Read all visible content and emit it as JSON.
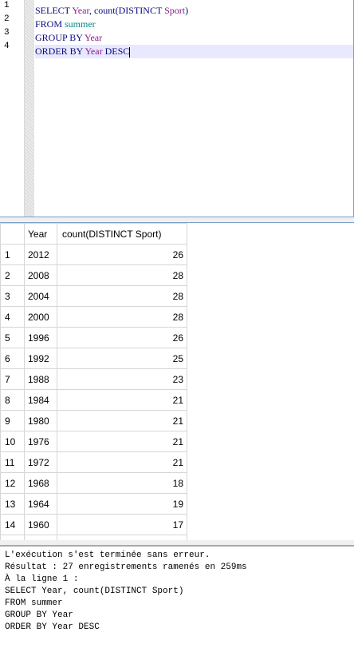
{
  "editor": {
    "line_numbers": [
      "1",
      "2",
      "3",
      "4"
    ],
    "lines": [
      {
        "tokens": [
          {
            "t": "SELECT ",
            "c": "kw"
          },
          {
            "t": "Year",
            "c": "id"
          },
          {
            "t": ", count(DISTINCT ",
            "c": "kw"
          },
          {
            "t": "Sport",
            "c": "id"
          },
          {
            "t": ")",
            "c": "kw"
          }
        ]
      },
      {
        "tokens": [
          {
            "t": "FROM ",
            "c": "kw"
          },
          {
            "t": "summer",
            "c": "tbl"
          }
        ]
      },
      {
        "tokens": [
          {
            "t": "GROUP BY ",
            "c": "kw"
          },
          {
            "t": "Year",
            "c": "id"
          }
        ]
      },
      {
        "tokens": [
          {
            "t": "ORDER BY ",
            "c": "kw"
          },
          {
            "t": "Year",
            "c": "id"
          },
          {
            "t": " DESC",
            "c": "kw"
          }
        ]
      }
    ]
  },
  "grid": {
    "columns": [
      "Year",
      "count(DISTINCT Sport)"
    ],
    "rows": [
      {
        "n": "1",
        "year": "2012",
        "count": "26"
      },
      {
        "n": "2",
        "year": "2008",
        "count": "28"
      },
      {
        "n": "3",
        "year": "2004",
        "count": "28"
      },
      {
        "n": "4",
        "year": "2000",
        "count": "28"
      },
      {
        "n": "5",
        "year": "1996",
        "count": "26"
      },
      {
        "n": "6",
        "year": "1992",
        "count": "25"
      },
      {
        "n": "7",
        "year": "1988",
        "count": "23"
      },
      {
        "n": "8",
        "year": "1984",
        "count": "21"
      },
      {
        "n": "9",
        "year": "1980",
        "count": "21"
      },
      {
        "n": "10",
        "year": "1976",
        "count": "21"
      },
      {
        "n": "11",
        "year": "1972",
        "count": "21"
      },
      {
        "n": "12",
        "year": "1968",
        "count": "18"
      },
      {
        "n": "13",
        "year": "1964",
        "count": "19"
      },
      {
        "n": "14",
        "year": "1960",
        "count": "17"
      }
    ]
  },
  "messages": {
    "lines": [
      "L'exécution s'est terminée sans erreur.",
      "Résultat : 27 enregistrements ramenés en 259ms",
      "À la ligne 1 :",
      "SELECT Year, count(DISTINCT Sport)",
      "FROM summer",
      "GROUP BY Year",
      "ORDER BY Year DESC"
    ]
  },
  "colors": {
    "keyword": "#0a0a80",
    "identifier": "#8b1a8b",
    "table": "#008b8b",
    "active_line": "#e8e8ff"
  }
}
